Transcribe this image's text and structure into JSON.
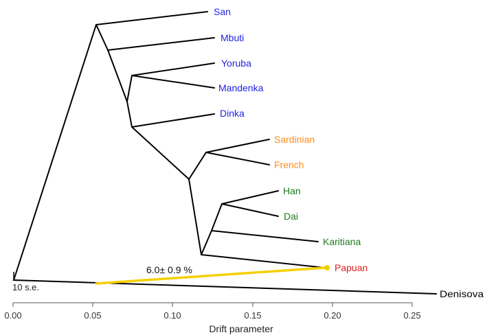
{
  "colors": {
    "africa": "#1f1fe6",
    "europe": "#ff8c1a",
    "asia_america": "#1e7a1e",
    "oceania": "#e61e1e",
    "outgroup": "#000000",
    "admixture": "#f5d000"
  },
  "tips": [
    {
      "name": "San",
      "group": "africa"
    },
    {
      "name": "Mbuti",
      "group": "africa"
    },
    {
      "name": "Yoruba",
      "group": "africa"
    },
    {
      "name": "Mandenka",
      "group": "africa"
    },
    {
      "name": "Dinka",
      "group": "africa"
    },
    {
      "name": "Sardinian",
      "group": "europe"
    },
    {
      "name": "French",
      "group": "europe"
    },
    {
      "name": "Han",
      "group": "asia_america"
    },
    {
      "name": "Dai",
      "group": "asia_america"
    },
    {
      "name": "Karitiana",
      "group": "asia_america"
    },
    {
      "name": "Papuan",
      "group": "oceania"
    },
    {
      "name": "Denisova",
      "group": "outgroup"
    }
  ],
  "admixture": {
    "label": "6.0± 0.9 %",
    "from": "Denisova lineage",
    "to": "Papuan"
  },
  "scale_bar": {
    "label": "10 s.e."
  },
  "axis": {
    "label": "Drift parameter",
    "ticks": [
      "0.00",
      "0.05",
      "0.10",
      "0.15",
      "0.20",
      "0.25"
    ]
  }
}
